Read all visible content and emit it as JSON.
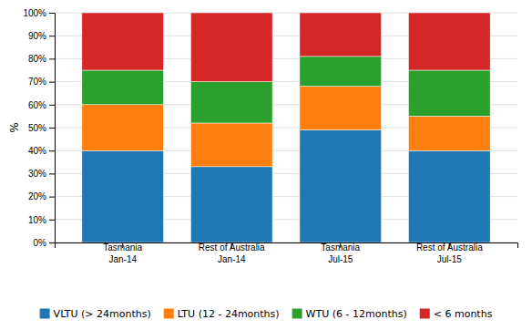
{
  "chart_data": {
    "type": "bar",
    "stacked": true,
    "categories": [
      [
        "Tasmania",
        "Jan-14"
      ],
      [
        "Rest of Australia",
        "Jan-14"
      ],
      [
        "Tasmania",
        "Jul-15"
      ],
      [
        "Rest of Australia",
        "Jul-15"
      ]
    ],
    "series": [
      {
        "name": "VLTU (> 24months)",
        "values": [
          40,
          33,
          49,
          40
        ]
      },
      {
        "name": "LTU (12 - 24months)",
        "values": [
          20,
          19,
          19,
          15
        ]
      },
      {
        "name": "WTU (6 - 12months)",
        "values": [
          15,
          18,
          13,
          20
        ]
      },
      {
        "name": "< 6 months",
        "values": [
          25,
          30,
          19,
          25
        ]
      }
    ],
    "y_label": "%",
    "ylim": [
      0,
      100
    ],
    "yticks": [
      {
        "value": 0,
        "label": "0%"
      },
      {
        "value": 10,
        "label": "10%"
      },
      {
        "value": 20,
        "label": "20%"
      },
      {
        "value": 30,
        "label": "30%"
      },
      {
        "value": 40,
        "label": "40%"
      },
      {
        "value": 50,
        "label": "50%"
      },
      {
        "value": 60,
        "label": "60%"
      },
      {
        "value": 70,
        "label": "70%"
      },
      {
        "value": 80,
        "label": "80%"
      },
      {
        "value": 90,
        "label": "90%"
      },
      {
        "value": 100,
        "label": "100%"
      }
    ],
    "grid": true,
    "legend": "bottom"
  }
}
